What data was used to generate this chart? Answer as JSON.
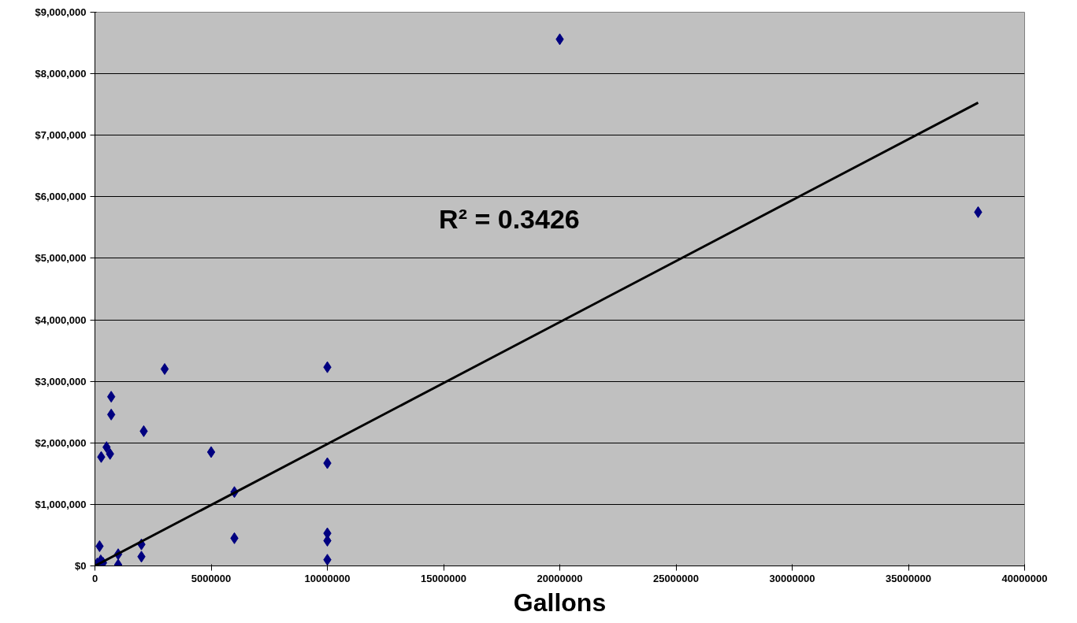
{
  "chart_data": {
    "type": "scatter",
    "xlabel": "Gallons",
    "annotations": [
      "R² = 0.3426"
    ],
    "xlim": [
      0,
      40000000
    ],
    "xticks": [
      0,
      5000000,
      10000000,
      15000000,
      20000000,
      25000000,
      30000000,
      35000000,
      40000000
    ],
    "ylim": [
      0,
      9000000
    ],
    "yticks": [
      {
        "value": 0,
        "label": "$0"
      },
      {
        "value": 1000000,
        "label": "$1,000,000"
      },
      {
        "value": 2000000,
        "label": "$2,000,000"
      },
      {
        "value": 3000000,
        "label": "$3,000,000"
      },
      {
        "value": 4000000,
        "label": "$4,000,000"
      },
      {
        "value": 5000000,
        "label": "$5,000,000"
      },
      {
        "value": 6000000,
        "label": "$6,000,000"
      },
      {
        "value": 7000000,
        "label": "$7,000,000"
      },
      {
        "value": 8000000,
        "label": "$8,000,000"
      },
      {
        "value": 9000000,
        "label": "$9,000,000"
      }
    ],
    "grid": "y",
    "marker": "diamond",
    "series": [
      {
        "color": "#000080",
        "x": [
          20000000,
          38000000,
          3000000,
          10000000,
          700000,
          700000,
          2100000,
          500000,
          650000,
          270000,
          5000000,
          10000000,
          6000000,
          6000000,
          10000000,
          10000000,
          10000000,
          200000,
          2000000,
          2000000,
          1000000,
          1000000,
          250000,
          350000,
          100000
        ],
        "values": [
          8560000,
          5750000,
          3200000,
          3230000,
          2750000,
          2460000,
          2190000,
          1930000,
          1820000,
          1770000,
          1850000,
          1670000,
          1200000,
          450000,
          530000,
          410000,
          100000,
          320000,
          350000,
          150000,
          190000,
          20000,
          90000,
          50000,
          40000
        ]
      },
      {
        "type": "line",
        "color": "#000000",
        "marker": "none",
        "x": [
          0,
          38000000
        ],
        "values": [
          0,
          7530000
        ]
      }
    ]
  }
}
